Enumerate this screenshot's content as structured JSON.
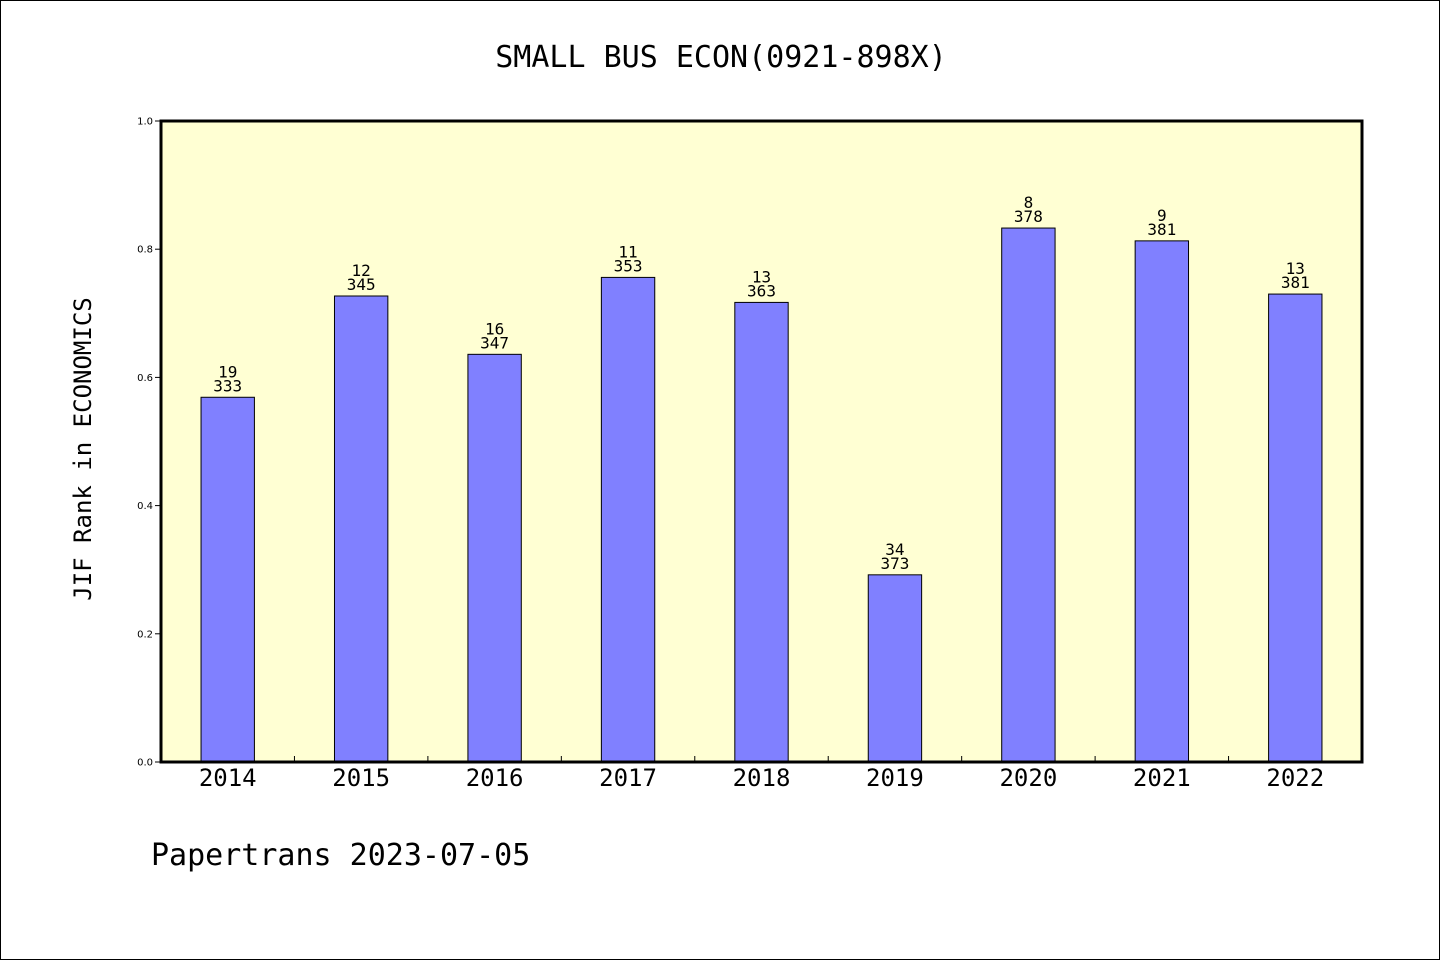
{
  "title": "SMALL BUS ECON(0921-898X)",
  "footer": "Papertrans 2023-07-05",
  "colors": {
    "plot_background": "#ffffd3",
    "bar_fill": "#8080ff",
    "bar_stroke": "#000000"
  },
  "chart_data": {
    "type": "bar",
    "title": "SMALL BUS ECON(0921-898X)",
    "xlabel": "",
    "ylabel": "JIF Rank in ECONOMICS",
    "ylim": [
      0.0,
      1.0
    ],
    "yticks": [
      "0.0",
      "0.2",
      "0.4",
      "0.6",
      "0.8",
      "1.0"
    ],
    "grid": false,
    "categories": [
      "2014",
      "2015",
      "2016",
      "2017",
      "2018",
      "2019",
      "2020",
      "2021",
      "2022"
    ],
    "values": [
      0.569,
      0.727,
      0.636,
      0.756,
      0.717,
      0.292,
      0.833,
      0.813,
      0.73
    ],
    "rank_labels": [
      "19",
      "12",
      "16",
      "11",
      "13",
      "34",
      "8",
      "9",
      "13"
    ],
    "total_labels": [
      "333",
      "345",
      "347",
      "353",
      "363",
      "373",
      "378",
      "381",
      "381"
    ]
  }
}
